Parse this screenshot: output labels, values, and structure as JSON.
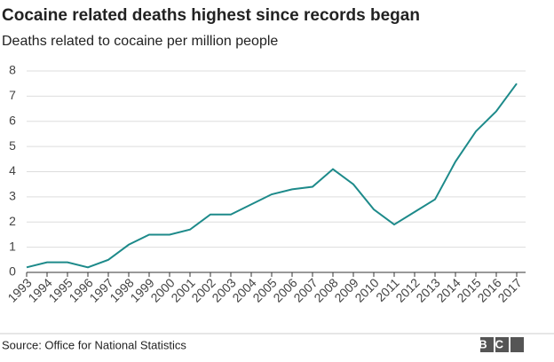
{
  "chart_data": {
    "type": "line",
    "title": "Cocaine related deaths highest since records began",
    "subtitle": "Deaths related to cocaine per million people",
    "source": "Source: Office for National Statistics",
    "logo": "BBC",
    "x": [
      1993,
      1994,
      1995,
      1996,
      1997,
      1998,
      1999,
      2000,
      2001,
      2002,
      2003,
      2004,
      2005,
      2006,
      2007,
      2008,
      2009,
      2010,
      2011,
      2012,
      2013,
      2014,
      2015,
      2016,
      2017
    ],
    "series": [
      {
        "color": "#1d8a8a",
        "values": [
          0.2,
          0.4,
          0.4,
          0.2,
          0.5,
          1.1,
          1.5,
          1.5,
          1.7,
          2.3,
          2.3,
          2.7,
          3.1,
          3.3,
          3.4,
          4.1,
          3.5,
          2.5,
          1.9,
          2.4,
          2.9,
          4.4,
          5.6,
          6.4,
          7.5
        ]
      }
    ],
    "xlim": [
      1993,
      2017
    ],
    "xticks": [
      1993,
      1994,
      1995,
      1996,
      1997,
      1998,
      1999,
      2000,
      2001,
      2002,
      2003,
      2004,
      2005,
      2006,
      2007,
      2008,
      2009,
      2010,
      2011,
      2012,
      2013,
      2014,
      2015,
      2016,
      2017
    ],
    "ylim": [
      0,
      8
    ],
    "yticks": [
      0,
      1,
      2,
      3,
      4,
      5,
      6,
      7,
      8
    ],
    "grid": true
  }
}
